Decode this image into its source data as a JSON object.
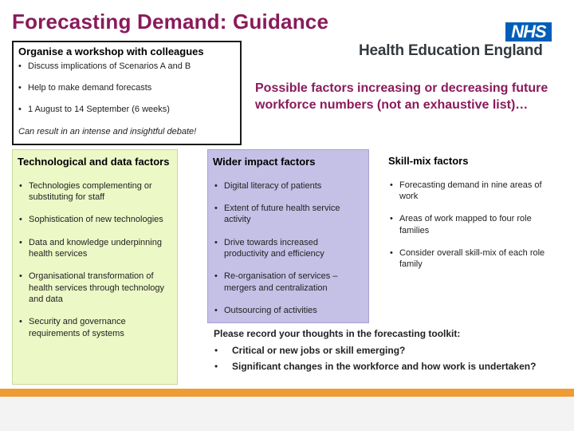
{
  "title": "Forecasting Demand: Guidance",
  "logo": {
    "nhs": "NHS",
    "org": "Health Education England"
  },
  "workshop": {
    "title": "Organise a workshop with colleagues",
    "items": [
      "Discuss implications of Scenarios A and B",
      "Help to make demand forecasts",
      "1 August to 14 September (6 weeks)"
    ],
    "note": "Can result in an intense and insightful debate!"
  },
  "possible_factors": "Possible factors increasing or decreasing future workforce numbers (not an exhaustive list)…",
  "columns": {
    "technological": {
      "title": "Technological and data factors",
      "items": [
        "Technologies complementing or substituting for staff",
        "Sophistication of new technologies",
        "Data and knowledge underpinning health services",
        "Organisational transformation of health services through technology and data",
        "Security and governance requirements of systems"
      ]
    },
    "wider": {
      "title": "Wider impact factors",
      "items": [
        "Digital literacy of patients",
        "Extent of future health service activity",
        "Drive towards increased productivity and efficiency",
        "Re-organisation of services – mergers and centralization",
        "Outsourcing of activities"
      ]
    },
    "skill_mix": {
      "title": "Skill-mix factors",
      "items": [
        "Forecasting demand in nine areas of work",
        "Areas of work mapped to four role families",
        "Consider overall skill-mix of each role family"
      ]
    }
  },
  "please": {
    "title": "Please record your thoughts in the forecasting toolkit:",
    "items": [
      "Critical or new jobs or skill emerging?",
      "Significant changes in the workforce and how work is undertaken?"
    ]
  },
  "colors": {
    "title": "#8a1a5b",
    "nhs_blue": "#005eb8",
    "tech_bg": "#edf8c7",
    "wider_bg": "#c4c0e6",
    "footer_accent": "#ee9c33"
  }
}
